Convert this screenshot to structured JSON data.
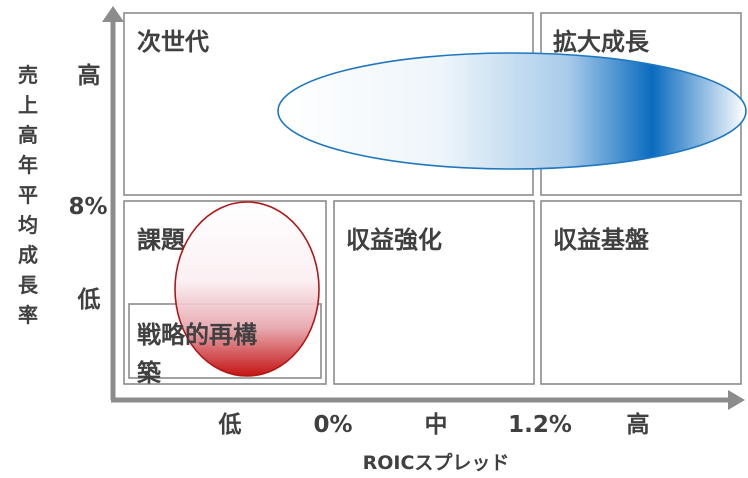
{
  "colors": {
    "grid_line": "#8c8c8c",
    "axis": "#8c8c8c",
    "text": "#404040",
    "blue_accent": "#0a6bbf",
    "blue_outline": "#1f77c0",
    "red_accent": "#c00000",
    "red_outline": "#b01818"
  },
  "quadrants": {
    "top_left": "次世代",
    "top_right": "拡大成長",
    "mid_left": "課題",
    "mid_center": "収益強化",
    "mid_right": "収益基盤",
    "inner_box": "戦略的再構築"
  },
  "y_axis": {
    "title": "売上高年平均成長率",
    "high": "高",
    "threshold": "8%",
    "low": "低"
  },
  "x_axis": {
    "title": "ROICスプレッド",
    "ticks": [
      "低",
      "0%",
      "中",
      "1.2%",
      "高"
    ]
  }
}
